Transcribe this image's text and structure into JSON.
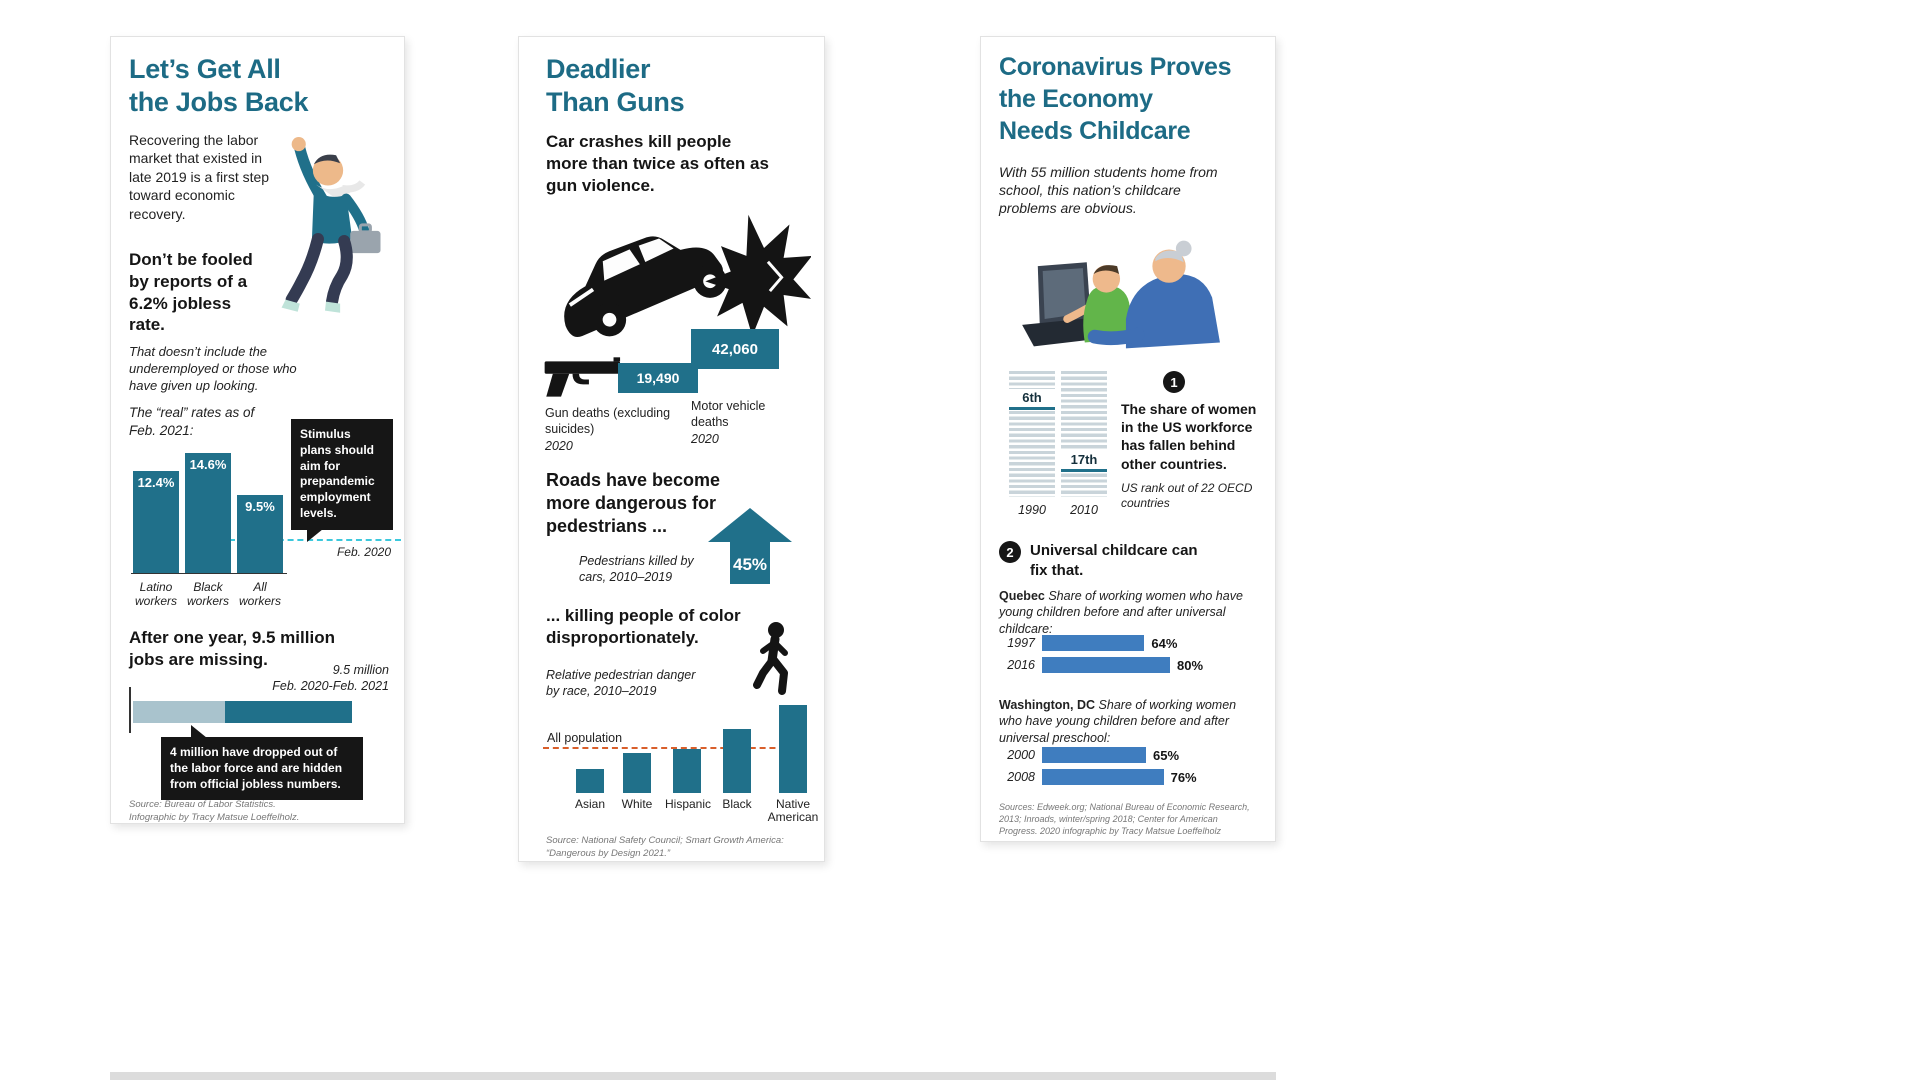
{
  "colors": {
    "heading_teal": "#1d6b85",
    "bar_teal": "#20708a",
    "light_bar": "#a9c3cd",
    "callout_black": "#161616",
    "cyan_dash": "#3bc8dc",
    "orange_dash": "#d95f2b",
    "blue_bar": "#3f7dbf",
    "rank_stripe": "#c9d4da"
  },
  "panel1": {
    "title_line1": "Let’s Get All",
    "title_line2": "the Jobs Back",
    "intro": "Recovering the labor market that existed in late 2019 is a first step toward economic recovery.",
    "fooled": "Don’t be fooled by reports of a 6.2% jobless rate.",
    "fooled_note": "That doesn’t include the underemployed or those who have given up looking.",
    "stimulus_callout": "Stimulus plans should aim for prepandemic employment levels.",
    "bar_annotation_line1": "9.5 million",
    "bar_annotation_line2": "Feb. 2020-Feb. 2021",
    "dropped_callout": "4 million have dropped out of the labor force and are hidden from official jobless numbers.",
    "source_line1": "Source: Bureau of Labor Statistics.",
    "source_line2": "Infographic by Tracy Matsue Loeffelholz."
  },
  "panel2": {
    "title_line1": "Deadlier",
    "title_line2": "Than Guns",
    "lead": "Car crashes kill people more than twice as often as gun violence.",
    "roads_heading": "Roads have become more dangerous for pedestrians ...",
    "killing_heading": "... killing people of color disproportionately.",
    "source": "Source: National Safety Council; Smart Growth America: “Dangerous by Design 2021.”"
  },
  "panel3": {
    "title_line1": "Coronavirus Proves",
    "title_line2": "the Economy",
    "title_line3": "Needs Childcare",
    "intro": "With 55 million students home from school, this nation’s childcare problems are obvious.",
    "point1_number": "1",
    "point1": "The share of women in the US workforce has fallen behind other countries.",
    "point2_number": "2",
    "point2": "Universal childcare can fix that.",
    "quebec_desc": "Share of working women who have young children before and after universal childcare:",
    "dc_desc": "Share of working women who have young children before and after universal preschool:",
    "sources": "Sources: Edweek.org; National Bureau of Economic Research, 2013; Inroads, winter/spring 2018; Center for American Progress. 2020 infographic by Tracy Matsue Loeffelholz"
  },
  "chart_data": [
    {
      "id": "real_jobless_rates",
      "type": "bar",
      "title": "The “real” rates as of Feb. 2021:",
      "categories": [
        "Latino workers",
        "Black workers",
        "All workers"
      ],
      "values": [
        12.4,
        14.6,
        9.5
      ],
      "value_labels": [
        "12.4%",
        "14.6%",
        "9.5%"
      ],
      "unit": "%",
      "reference_line": {
        "label": "Feb. 2020"
      }
    },
    {
      "id": "jobs_missing",
      "type": "bar",
      "orientation": "horizontal",
      "title": "After one year, 9.5 million jobs are missing.",
      "annotation": "9.5 million Feb. 2020-Feb. 2021",
      "total_millions": 9.5,
      "segments": [
        {
          "name": "dropped out of labor force",
          "value": 4
        },
        {
          "name": "remainder of missing jobs",
          "value": 5.5
        }
      ]
    },
    {
      "id": "deaths_2020",
      "type": "bar",
      "year": "2020",
      "categories": [
        "Gun deaths (excluding suicides)",
        "Motor vehicle deaths"
      ],
      "values": [
        19490,
        42060
      ],
      "value_labels": [
        "19,490",
        "42,060"
      ]
    },
    {
      "id": "pedestrian_deaths_change",
      "type": "stat",
      "label": "Pedestrians killed by cars, 2010–2019",
      "value_label": "45%",
      "direction": "up"
    },
    {
      "id": "pedestrian_danger_by_race",
      "type": "bar",
      "title": "Relative pedestrian danger by race, 2010–2019",
      "categories": [
        "Asian",
        "White",
        "Hispanic",
        "Black",
        "Native American"
      ],
      "values": [
        0.55,
        0.9,
        1.0,
        1.45,
        2.0
      ],
      "values_note": "estimated from bar heights relative to all population = 1",
      "reference_line": {
        "label": "All population",
        "value": 1.0
      }
    },
    {
      "id": "us_women_workforce_rank",
      "type": "rank",
      "note": "US rank out of 22 OECD countries",
      "total": 22,
      "categories": [
        "1990",
        "2010"
      ],
      "rank_labels": [
        "6th",
        "17th"
      ],
      "ranks": [
        6,
        17
      ]
    },
    {
      "id": "quebec_childcare",
      "type": "bar",
      "orientation": "horizontal",
      "region": "Quebec",
      "categories": [
        "1997",
        "2016"
      ],
      "values": [
        64,
        80
      ],
      "value_labels": [
        "64%",
        "80%"
      ]
    },
    {
      "id": "washington_dc_preschool",
      "type": "bar",
      "orientation": "horizontal",
      "region": "Washington, DC",
      "categories": [
        "2000",
        "2008"
      ],
      "values": [
        65,
        76
      ],
      "value_labels": [
        "65%",
        "76%"
      ]
    }
  ]
}
